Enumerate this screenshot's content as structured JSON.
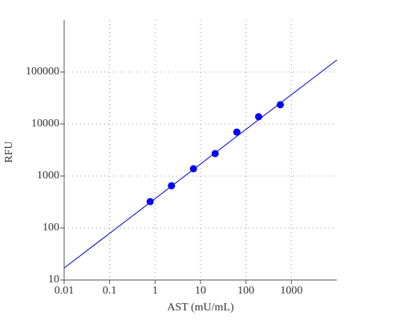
{
  "chart_data": {
    "type": "scatter",
    "xlabel": "AST (mU/mL)",
    "ylabel": "RFU",
    "xscale": "log",
    "yscale": "log",
    "grid": true,
    "xlim": [
      0.01,
      10000
    ],
    "ylim": [
      10,
      1000000
    ],
    "xticks": [
      0.01,
      0.1,
      1,
      10,
      100,
      1000
    ],
    "yticks": [
      10,
      100,
      1000,
      10000,
      100000
    ],
    "series": [
      {
        "mode": "markers",
        "color": "#0000ff",
        "x": [
          0.78,
          2.3,
          7,
          21,
          63,
          190,
          570
        ],
        "values": [
          322,
          650,
          1380,
          2700,
          7000,
          13800,
          23500
        ]
      },
      {
        "mode": "line",
        "color": "#0000cc",
        "x": [
          0.01,
          10000
        ],
        "values": [
          17,
          170000
        ]
      }
    ]
  }
}
